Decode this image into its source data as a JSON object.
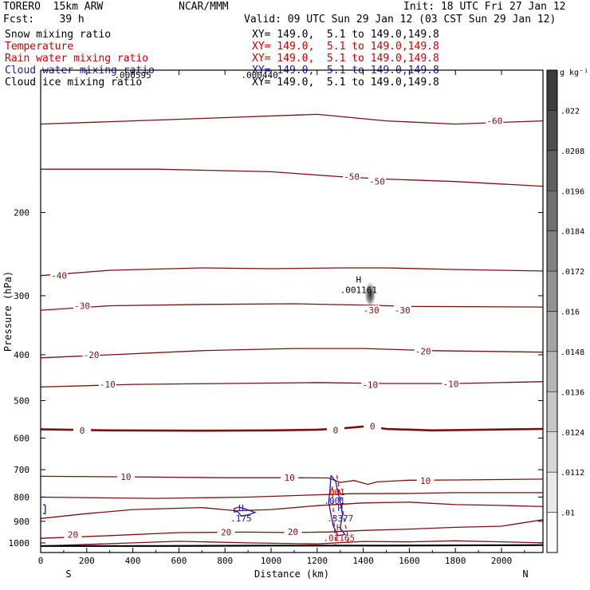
{
  "header": {
    "model": "TORERO  15km ARW",
    "org": "NCAR/MMM",
    "init": "Init: 18 UTC Fri 27 Jan 12",
    "fcst": "Fcst:    39 h",
    "valid": "Valid: 09 UTC Sun 29 Jan 12 (03 CST Sun 29 Jan 12)"
  },
  "legend": [
    {
      "name": "Snow mixing ratio",
      "xy": "XY= 149.0,  5.1 to 149.0,149.8",
      "color": "#000000"
    },
    {
      "name": "Temperature",
      "xy": "XY= 149.0,  5.1 to 149.0,149.8",
      "color": "#cc0000"
    },
    {
      "name": "Rain water mixing ratio",
      "xy": "XY= 149.0,  5.1 to 149.0,149.8",
      "color": "#cc0000"
    },
    {
      "name": "Cloud water mixing ratio",
      "xy": "XY= 149.0,  5.1 to 149.0,149.8",
      "color": "#1a1aa6"
    },
    {
      "name": "Cloud ice mixing ratio",
      "xy": "XY= 149.0,  5.1 to 149.0,149.8",
      "color": "#000000"
    }
  ],
  "colors": {
    "temperature": "#7a1010",
    "rain": "#cc0000",
    "cloud_water": "#1a1aa6",
    "black": "#000000"
  },
  "chart_data": {
    "type": "contour",
    "xlabel": "Distance (km)",
    "ylabel": "Pressure (hPa)",
    "xlim": [
      0,
      2180
    ],
    "ylim": [
      1048,
      100
    ],
    "x_ticks": [
      0,
      200,
      400,
      600,
      800,
      1000,
      1200,
      1400,
      1600,
      1800,
      2000
    ],
    "y_ticks": [
      200,
      300,
      400,
      500,
      600,
      700,
      800,
      900,
      1000
    ],
    "endpoint_labels": {
      "left": "S",
      "right": "N"
    },
    "temperature_contours": [
      {
        "label": "-60",
        "points": [
          [
            0,
            130
          ],
          [
            400,
            128
          ],
          [
            800,
            126
          ],
          [
            1200,
            124
          ],
          [
            1500,
            128
          ],
          [
            1800,
            130
          ],
          [
            2180,
            128
          ]
        ],
        "label_positions": [
          [
            1970,
            128
          ]
        ]
      },
      {
        "label": "-50",
        "points": [
          [
            0,
            162
          ],
          [
            500,
            162
          ],
          [
            1000,
            164
          ],
          [
            1300,
            168
          ],
          [
            1500,
            170
          ],
          [
            1800,
            172
          ],
          [
            2180,
            176
          ]
        ],
        "label_positions": [
          [
            1350,
            168
          ],
          [
            1460,
            172
          ]
        ]
      },
      {
        "label": "-40",
        "points": [
          [
            0,
            272
          ],
          [
            300,
            265
          ],
          [
            700,
            262
          ],
          [
            1000,
            263
          ],
          [
            1300,
            262
          ],
          [
            1500,
            262
          ],
          [
            1800,
            264
          ],
          [
            2180,
            266
          ]
        ],
        "label_positions": [
          [
            80,
            272
          ]
        ]
      },
      {
        "label": "-30",
        "points": [
          [
            0,
            322
          ],
          [
            300,
            315
          ],
          [
            700,
            313
          ],
          [
            1100,
            312
          ],
          [
            1400,
            314
          ],
          [
            1600,
            316
          ],
          [
            2180,
            317
          ]
        ],
        "label_positions": [
          [
            180,
            315
          ],
          [
            1435,
            322
          ],
          [
            1570,
            322
          ]
        ]
      },
      {
        "label": "-20",
        "points": [
          [
            0,
            406
          ],
          [
            300,
            400
          ],
          [
            700,
            392
          ],
          [
            1100,
            388
          ],
          [
            1400,
            388
          ],
          [
            1700,
            392
          ],
          [
            2180,
            395
          ]
        ],
        "label_positions": [
          [
            220,
            400
          ],
          [
            1660,
            393
          ]
        ]
      },
      {
        "label": "-10",
        "points": [
          [
            0,
            468
          ],
          [
            400,
            462
          ],
          [
            800,
            460
          ],
          [
            1200,
            458
          ],
          [
            1500,
            460
          ],
          [
            1800,
            460
          ],
          [
            2180,
            456
          ]
        ],
        "label_positions": [
          [
            290,
            462
          ],
          [
            1430,
            463
          ],
          [
            1780,
            461
          ]
        ]
      },
      {
        "label": "0",
        "points": [
          [
            0,
            575
          ],
          [
            300,
            578
          ],
          [
            700,
            579
          ],
          [
            1000,
            578
          ],
          [
            1200,
            576
          ],
          [
            1300,
            573
          ],
          [
            1420,
            566
          ],
          [
            1500,
            574
          ],
          [
            1700,
            578
          ],
          [
            2180,
            574
          ]
        ],
        "label_positions": [
          [
            180,
            578
          ],
          [
            1280,
            577
          ],
          [
            1440,
            566
          ]
        ]
      },
      {
        "label": "10",
        "points": [
          [
            0,
            723
          ],
          [
            400,
            725
          ],
          [
            800,
            728
          ],
          [
            1100,
            728
          ],
          [
            1250,
            729
          ],
          [
            1300,
            745
          ],
          [
            1360,
            738
          ],
          [
            1420,
            752
          ],
          [
            1460,
            743
          ],
          [
            1600,
            737
          ],
          [
            1800,
            736
          ],
          [
            2180,
            733
          ]
        ],
        "label_positions": [
          [
            370,
            725
          ],
          [
            1080,
            728
          ],
          [
            1670,
            739
          ]
        ]
      },
      {
        "label": "",
        "points": [
          [
            0,
            800
          ],
          [
            500,
            805
          ],
          [
            900,
            800
          ],
          [
            1200,
            791
          ],
          [
            1350,
            787
          ],
          [
            1600,
            786
          ],
          [
            1800,
            783
          ],
          [
            2180,
            783
          ]
        ],
        "label_positions": []
      },
      {
        "label": "",
        "points": [
          [
            0,
            888
          ],
          [
            200,
            867
          ],
          [
            400,
            850
          ],
          [
            700,
            842
          ],
          [
            850,
            855
          ],
          [
            1000,
            850
          ],
          [
            1200,
            834
          ],
          [
            1400,
            823
          ],
          [
            1600,
            820
          ],
          [
            1800,
            830
          ],
          [
            2000,
            833
          ],
          [
            2180,
            838
          ]
        ],
        "label_positions": []
      },
      {
        "label": "20",
        "points": [
          [
            0,
            978
          ],
          [
            300,
            965
          ],
          [
            600,
            951
          ],
          [
            900,
            949
          ],
          [
            1100,
            951
          ],
          [
            1250,
            948
          ],
          [
            1400,
            941
          ],
          [
            1600,
            935
          ],
          [
            1800,
            927
          ],
          [
            2000,
            922
          ],
          [
            2180,
            893
          ]
        ],
        "label_positions": [
          [
            140,
            960
          ],
          [
            805,
            950
          ],
          [
            1095,
            947
          ]
        ]
      },
      {
        "label": "",
        "points": [
          [
            0,
            1015
          ],
          [
            400,
            1000
          ],
          [
            600,
            992
          ],
          [
            900,
            1000
          ],
          [
            1200,
            1005
          ],
          [
            1400,
            993
          ],
          [
            1600,
            995
          ],
          [
            1800,
            990
          ],
          [
            2000,
            995
          ],
          [
            2180,
            1000
          ]
        ],
        "label_positions": []
      }
    ],
    "ground_line": [
      [
        0,
        1015
      ],
      [
        500,
        1015
      ],
      [
        1000,
        1013
      ],
      [
        1500,
        1013
      ],
      [
        2180,
        1011
      ]
    ],
    "cloud_water": [
      {
        "points": [
          [
            855,
            858
          ],
          [
            840,
            860
          ],
          [
            840,
            846
          ],
          [
            860,
            840
          ],
          [
            890,
            848
          ],
          [
            930,
            862
          ],
          [
            900,
            872
          ],
          [
            870,
            878
          ],
          [
            855,
            858
          ]
        ]
      },
      {
        "points": [
          [
            1260,
            720
          ],
          [
            1280,
            740
          ],
          [
            1290,
            780
          ],
          [
            1300,
            820
          ],
          [
            1310,
            870
          ],
          [
            1300,
            930
          ],
          [
            1320,
            960
          ],
          [
            1290,
            965
          ],
          [
            1270,
            920
          ],
          [
            1260,
            870
          ],
          [
            1250,
            820
          ],
          [
            1255,
            780
          ],
          [
            1260,
            720
          ]
        ]
      },
      {
        "points": [
          [
            10,
            830
          ],
          [
            20,
            832
          ],
          [
            20,
            868
          ],
          [
            10,
            866
          ]
        ]
      }
    ],
    "rain_water": [
      {
        "points": [
          [
            1285,
            720
          ],
          [
            1300,
            790
          ],
          [
            1310,
            850
          ],
          [
            1320,
            910
          ],
          [
            1330,
            950
          ],
          [
            1335,
            1010
          ]
        ]
      },
      {
        "points": [
          [
            1265,
            760
          ],
          [
            1270,
            850
          ],
          [
            1275,
            930
          ],
          [
            1280,
            1010
          ]
        ]
      }
    ],
    "maxima": [
      {
        "mark": "H",
        "value": ".001161",
        "x": 1380,
        "p": 286,
        "color": "#000000"
      },
      {
        "mark": "H",
        "value": ".175",
        "x": 870,
        "p": 870,
        "color": "#1a1aa6"
      },
      {
        "mark": "H",
        "value": ".3377",
        "x": 1300,
        "p": 870,
        "color": "#1a1aa6"
      },
      {
        "mark": "H",
        "value": ".01165",
        "x": 1295,
        "p": 957,
        "color": "#cc0000"
      }
    ],
    "contour_value_labels": [
      {
        "text": ".001",
        "x": 1275,
        "p": 793,
        "color": "#cc0000"
      },
      {
        "text": ".001",
        "x": 1275,
        "p": 827,
        "color": "#1a1aa6"
      },
      {
        "text": ".000595",
        "x": 400,
        "p": 100,
        "color": "#000000"
      },
      {
        "text": ".000440",
        "x": 950,
        "p": 100,
        "color": "#000000"
      }
    ],
    "snow_max_blob": {
      "x": 1430,
      "p": 298
    },
    "colorbar": {
      "unit": "g kg⁻¹",
      "ticks": [
        ".022",
        ".0208",
        ".0196",
        ".0184",
        ".0172",
        ".016",
        ".0148",
        ".0136",
        ".0124",
        ".0112",
        ".01"
      ]
    }
  }
}
